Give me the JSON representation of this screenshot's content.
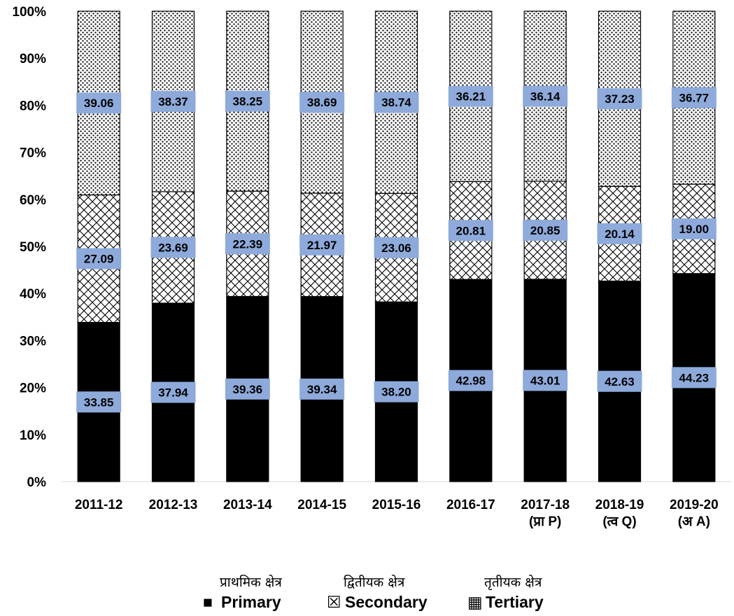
{
  "chart_data": {
    "type": "bar",
    "stacked": true,
    "percent_stacked": true,
    "categories": [
      [
        "2011-12"
      ],
      [
        "2012-13"
      ],
      [
        "2013-14"
      ],
      [
        "2014-15"
      ],
      [
        "2015-16"
      ],
      [
        "2016-17"
      ],
      [
        "2017-18",
        "(प्रा P)"
      ],
      [
        "2018-19",
        "(त्व Q)"
      ],
      [
        "2019-20",
        "(अ A)"
      ]
    ],
    "series": [
      {
        "name": "Primary",
        "name_hindi": "प्राथमिक क्षेत्र",
        "values": [
          33.85,
          37.94,
          39.36,
          39.34,
          38.2,
          42.98,
          43.01,
          42.63,
          44.23
        ],
        "labels": [
          "33.85",
          "37.94",
          "39.36",
          "39.34",
          "38.20",
          "42.98",
          "43.01",
          "42.63",
          "44.23"
        ],
        "fill": "solid",
        "color": "#000000"
      },
      {
        "name": "Secondary",
        "name_hindi": "द्वितीयक क्षेत्र",
        "values": [
          27.09,
          23.69,
          22.39,
          21.97,
          23.06,
          20.81,
          20.85,
          20.14,
          19.0
        ],
        "labels": [
          "27.09",
          "23.69",
          "22.39",
          "21.97",
          "23.06",
          "20.81",
          "20.85",
          "20.14",
          "19.00"
        ],
        "fill": "crosshatch",
        "color": "#000000"
      },
      {
        "name": "Tertiary",
        "name_hindi": "तृतीयक क्षेत्र",
        "values": [
          39.06,
          38.37,
          38.25,
          38.69,
          38.74,
          36.21,
          36.14,
          37.23,
          36.77
        ],
        "labels": [
          "39.06",
          "38.37",
          "38.25",
          "38.69",
          "38.74",
          "36.21",
          "36.14",
          "37.23",
          "36.77"
        ],
        "fill": "dots",
        "color": "#000000"
      }
    ],
    "y_ticks": [
      "0%",
      "10%",
      "20%",
      "30%",
      "40%",
      "50%",
      "60%",
      "70%",
      "80%",
      "90%",
      "100%"
    ],
    "ylim": [
      0,
      100
    ],
    "grid": false,
    "legend_position": "bottom",
    "label_box_color": "#8eaadb",
    "legend_markers": [
      "■",
      "☒",
      "▦"
    ]
  }
}
